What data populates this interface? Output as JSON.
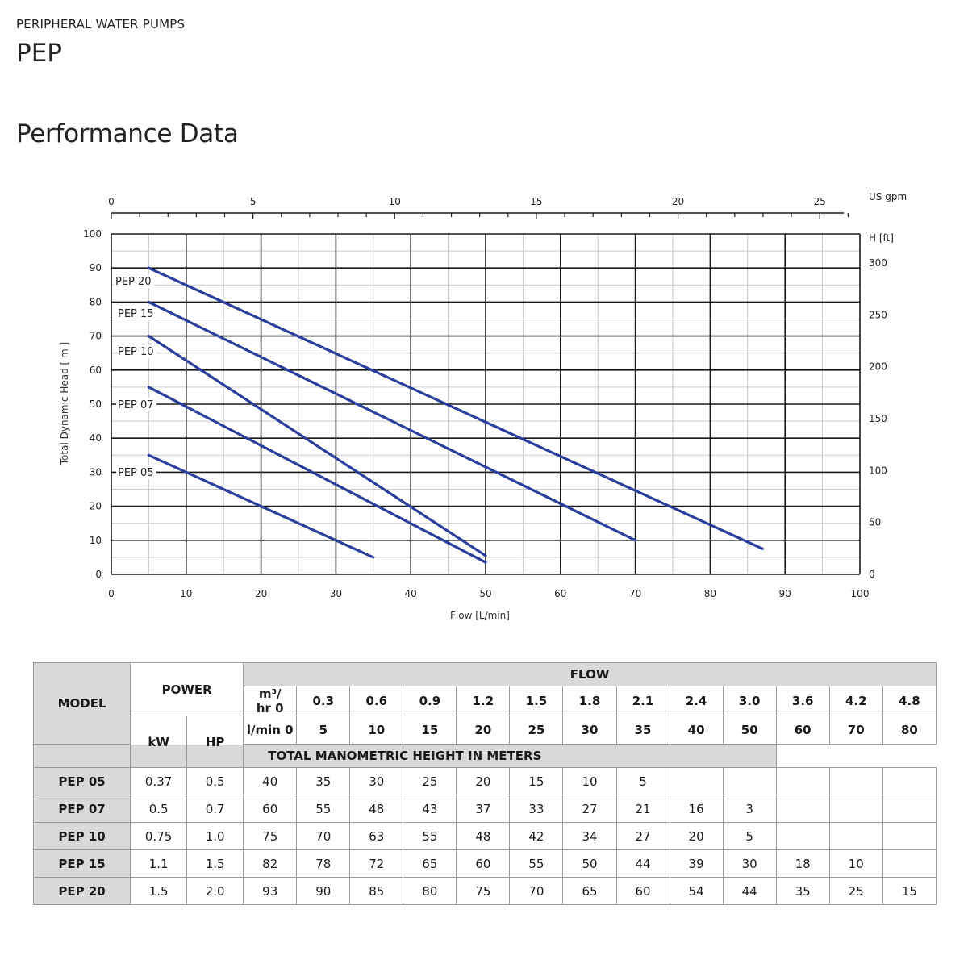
{
  "header": {
    "eyebrow": "PERIPHERAL WATER PUMPS",
    "product": "PEP",
    "section_title": "Performance Data"
  },
  "chart_data": {
    "type": "line",
    "title": "",
    "xlabel": "Flow [L/min]",
    "ylabel": "Total Dynamic Head [ m ]",
    "xlim": [
      0,
      100
    ],
    "ylim": [
      0,
      100
    ],
    "x_ticks": [
      0,
      10,
      20,
      30,
      40,
      50,
      60,
      70,
      80,
      90,
      100
    ],
    "y_ticks": [
      0,
      10,
      20,
      30,
      40,
      50,
      60,
      70,
      80,
      90,
      100
    ],
    "top_axis": {
      "label": "US gpm",
      "ticks": [
        0,
        5,
        10,
        15,
        20,
        25
      ]
    },
    "right_axis": {
      "label": "H [ft]",
      "ticks": [
        0,
        50,
        100,
        150,
        200,
        250,
        300
      ]
    },
    "grid": true,
    "series_color": "#2c3e9c",
    "series": [
      {
        "name": "PEP 20",
        "x": [
          5,
          87
        ],
        "y": [
          90,
          7.5
        ]
      },
      {
        "name": "PEP 15",
        "x": [
          5,
          70
        ],
        "y": [
          80,
          10
        ]
      },
      {
        "name": "PEP 10",
        "x": [
          5,
          50
        ],
        "y": [
          70,
          5.5
        ]
      },
      {
        "name": "PEP 07",
        "x": [
          5,
          50
        ],
        "y": [
          55,
          3.5
        ]
      },
      {
        "name": "PEP 05",
        "x": [
          5,
          35
        ],
        "y": [
          35,
          5
        ]
      }
    ]
  },
  "table": {
    "model_header": "MODEL",
    "power_header": "POWER",
    "flow_header": "FLOW",
    "m3_label_line1": "m³/",
    "m3_label_line2": "hr  0",
    "lmin_label": "l/min  0",
    "kw_header": "kW",
    "hp_header": "HP",
    "tmh_header": "TOTAL MANOMETRIC HEIGHT IN METERS",
    "m3_values": [
      "0.3",
      "0.6",
      "0.9",
      "1.2",
      "1.5",
      "1.8",
      "2.1",
      "2.4",
      "3.0",
      "3.6",
      "4.2",
      "4.8"
    ],
    "lmin_values": [
      "5",
      "10",
      "15",
      "20",
      "25",
      "30",
      "35",
      "40",
      "50",
      "60",
      "70",
      "80"
    ],
    "rows": [
      {
        "model": "PEP 05",
        "kw": "0.37",
        "hp": "0.5",
        "values": [
          "40",
          "35",
          "30",
          "25",
          "20",
          "15",
          "10",
          "5",
          "",
          "",
          "",
          "",
          ""
        ]
      },
      {
        "model": "PEP 07",
        "kw": "0.5",
        "hp": "0.7",
        "values": [
          "60",
          "55",
          "48",
          "43",
          "37",
          "33",
          "27",
          "21",
          "16",
          "3",
          "",
          "",
          ""
        ]
      },
      {
        "model": "PEP 10",
        "kw": "0.75",
        "hp": "1.0",
        "values": [
          "75",
          "70",
          "63",
          "55",
          "48",
          "42",
          "34",
          "27",
          "20",
          "5",
          "",
          "",
          ""
        ]
      },
      {
        "model": "PEP 15",
        "kw": "1.1",
        "hp": "1.5",
        "values": [
          "82",
          "78",
          "72",
          "65",
          "60",
          "55",
          "50",
          "44",
          "39",
          "30",
          "18",
          "10",
          ""
        ]
      },
      {
        "model": "PEP 20",
        "kw": "1.5",
        "hp": "2.0",
        "values": [
          "93",
          "90",
          "85",
          "80",
          "75",
          "70",
          "65",
          "60",
          "54",
          "44",
          "35",
          "25",
          "15"
        ]
      }
    ]
  }
}
